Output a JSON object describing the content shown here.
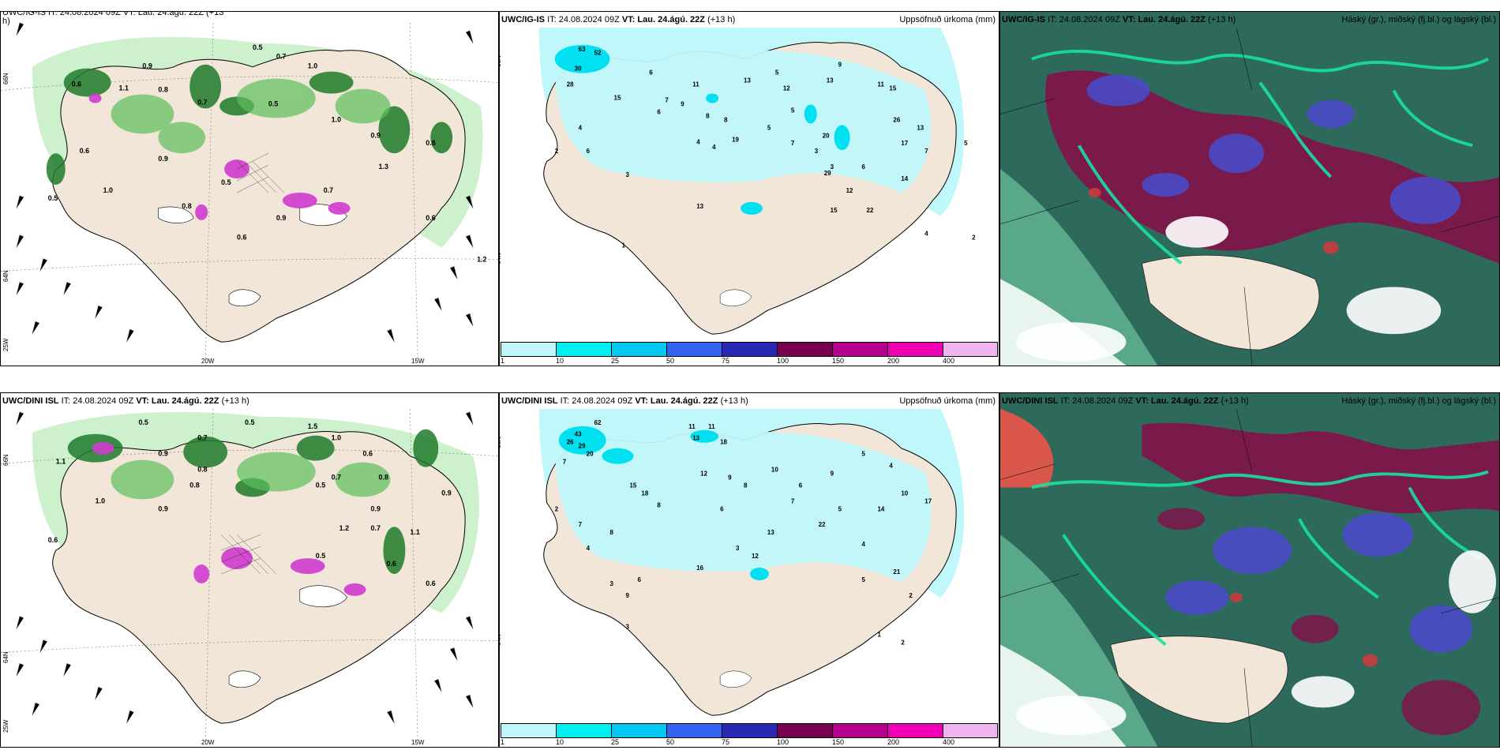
{
  "rows": [
    {
      "model_label": "UWC/IG-IS",
      "it_text": "IT: 24.08.2024 09Z",
      "vt_label": "VT:",
      "vt_value": "Lau. 24.ágú. 22Z",
      "lead": "(+13 h)",
      "left_header_partial": "UWC/IG-IS IT: 24.08.2024 09Z VT: Lau. 24.ágú. 22Z (+13",
      "left_header_wrap": "h)",
      "precip_title": "Uppsöfnuð úrkoma (mm)",
      "cloud_title": "Háský (gr.), miðský (fj.bl.) og lágský (bl.)",
      "wind_values": [
        "0.5",
        "0.7",
        "0.9",
        "1.0",
        "1.1",
        "0.8",
        "0.6",
        "0.7",
        "0.5",
        "1.0",
        "0.9",
        "0.8",
        "0.6",
        "0.9",
        "0.5",
        "0.7",
        "1.3",
        "1.0",
        "0.8",
        "0.6",
        "0.9",
        "0.5",
        "0.6",
        "1.2"
      ],
      "precip_values": [
        "63",
        "52",
        "30",
        "28",
        "15",
        "11",
        "6",
        "7",
        "9",
        "8",
        "13",
        "5",
        "12",
        "13",
        "9",
        "11",
        "15",
        "6",
        "4",
        "8",
        "19",
        "5",
        "7",
        "3",
        "20",
        "26",
        "13",
        "7",
        "5",
        "4",
        "17",
        "3",
        "29",
        "6",
        "14",
        "12",
        "22",
        "15",
        "13",
        "4",
        "2",
        "6",
        "1",
        "3",
        "2",
        "4",
        "5"
      ]
    },
    {
      "model_label": "UWC/DINI ISL",
      "it_text": "IT: 24.08.2024 09Z",
      "vt_label": "VT:",
      "vt_value": "Lau. 24.ágú. 22Z",
      "lead": "(+13 h)",
      "precip_title": "Uppsöfnuð úrkoma (mm)",
      "cloud_title": "Háský (gr.), miðský (fj.bl.) og lágský (bl.)",
      "wind_values": [
        "0.5",
        "0.7",
        "0.9",
        "1.0",
        "1.1",
        "0.8",
        "0.6",
        "0.7",
        "0.5",
        "1.5",
        "0.9",
        "0.8",
        "0.6",
        "0.9",
        "0.5",
        "0.7",
        "1.2",
        "1.0",
        "0.8",
        "0.6",
        "0.9",
        "0.5",
        "0.6",
        "1.1"
      ],
      "precip_values": [
        "43",
        "62",
        "29",
        "26",
        "20",
        "11",
        "7",
        "12",
        "18",
        "9",
        "8",
        "11",
        "13",
        "10",
        "7",
        "6",
        "15",
        "5",
        "4",
        "8",
        "18",
        "22",
        "13",
        "14",
        "5",
        "4",
        "17",
        "10",
        "9",
        "3",
        "6",
        "2",
        "21",
        "12",
        "16",
        "3",
        "2",
        "5",
        "4",
        "7",
        "1",
        "2",
        "3",
        "6",
        "8",
        "9"
      ]
    }
  ],
  "axis_labels": {
    "lat_66": "66N",
    "lat_64": "64N",
    "lon_25": "25W",
    "lon_20": "20W",
    "lon_15": "15W"
  },
  "colorbar": {
    "ticks": [
      "1",
      "10",
      "25",
      "50",
      "75",
      "100",
      "150",
      "200",
      "400"
    ],
    "colors": [
      "#bff7fa",
      "#00f0f0",
      "#00c8f0",
      "#3264f0",
      "#2828b4",
      "#780050",
      "#b4008c",
      "#f000b4",
      "#f0b4f0"
    ]
  }
}
